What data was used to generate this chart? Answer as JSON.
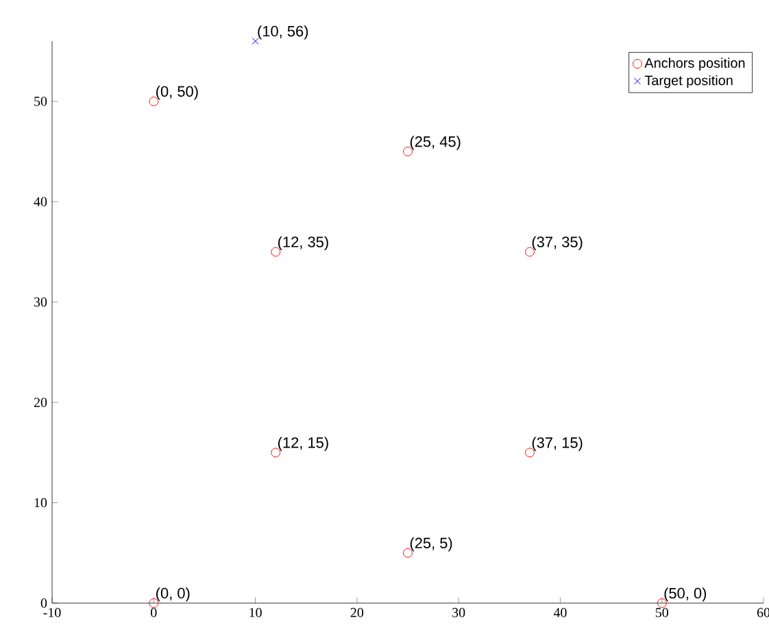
{
  "chart_data": {
    "type": "scatter",
    "xlim": [
      -10,
      60
    ],
    "ylim": [
      0,
      56
    ],
    "xticks": [
      -10,
      0,
      10,
      20,
      30,
      40,
      50,
      60
    ],
    "yticks": [
      0,
      10,
      20,
      30,
      40,
      50
    ],
    "legend": "top right",
    "grid": false,
    "series": [
      {
        "name": "Anchors position",
        "color": "#ff0000",
        "marker": "circle",
        "x": [
          0,
          25,
          12,
          37,
          12,
          37,
          25,
          0,
          50
        ],
        "values": [
          50,
          45,
          35,
          35,
          15,
          15,
          5,
          0,
          0
        ]
      },
      {
        "name": "Target position",
        "color": "#0000ff",
        "marker": "cross",
        "x": [
          10
        ],
        "values": [
          56
        ]
      }
    ],
    "annotations": [
      {
        "text": "(10, 56)",
        "x": 10,
        "y": 56
      },
      {
        "text": "(0, 50)",
        "x": 0,
        "y": 50
      },
      {
        "text": "(25, 45)",
        "x": 25,
        "y": 45
      },
      {
        "text": "(12, 35)",
        "x": 12,
        "y": 35
      },
      {
        "text": "(37, 35)",
        "x": 37,
        "y": 35
      },
      {
        "text": "(12, 15)",
        "x": 12,
        "y": 15
      },
      {
        "text": "(37, 15)",
        "x": 37,
        "y": 15
      },
      {
        "text": "(25, 5)",
        "x": 25,
        "y": 5
      },
      {
        "text": "(0, 0)",
        "x": 0,
        "y": 0
      },
      {
        "text": "(50, 0)",
        "x": 50,
        "y": 0
      }
    ]
  }
}
